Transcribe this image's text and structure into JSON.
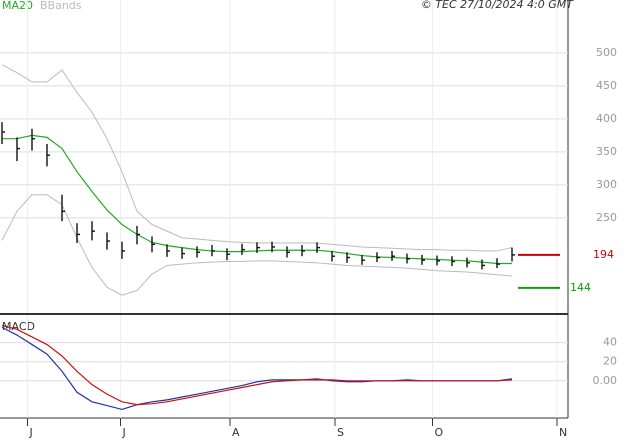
{
  "chart_data": [
    {
      "type": "ohlc",
      "source": "© TEC 27/10/2024 4:0 GMT",
      "high": [
        395,
        372,
        385,
        362,
        285,
        242,
        245,
        228,
        214,
        238,
        222,
        210,
        205,
        207,
        209,
        204,
        211,
        213,
        214,
        207,
        209,
        213,
        200,
        198,
        194,
        198,
        200,
        196,
        194,
        193,
        192,
        190,
        187,
        189,
        205
      ],
      "low": [
        362,
        336,
        352,
        328,
        245,
        212,
        216,
        202,
        188,
        210,
        198,
        191,
        188,
        190,
        192,
        186,
        194,
        197,
        198,
        190,
        192,
        197,
        184,
        182,
        179,
        183,
        185,
        181,
        179,
        178,
        177,
        175,
        172,
        174,
        184
      ],
      "close": [
        380,
        355,
        370,
        345,
        260,
        225,
        230,
        215,
        200,
        225,
        210,
        200,
        196,
        198,
        200,
        195,
        202,
        205,
        206,
        198,
        200,
        205,
        192,
        190,
        186,
        190,
        192,
        188,
        186,
        185,
        184,
        182,
        178,
        180,
        194
      ],
      "series": [
        {
          "name": "MA20",
          "color": "#22aa22",
          "values": [
            370,
            370,
            375,
            372,
            355,
            320,
            290,
            262,
            240,
            225,
            213,
            208,
            205,
            202,
            200,
            199,
            199,
            200,
            201,
            201,
            201,
            201,
            199,
            196,
            193,
            191,
            190,
            189,
            188,
            187,
            186,
            185,
            183,
            181,
            181
          ]
        },
        {
          "name": "BBands",
          "color": "#bbbbbb",
          "upper": [
            482,
            470,
            456,
            456,
            474,
            440,
            410,
            370,
            320,
            260,
            240,
            230,
            220,
            218,
            216,
            214,
            213,
            212,
            212,
            212,
            212,
            212,
            210,
            208,
            206,
            205,
            204,
            203,
            202,
            202,
            201,
            201,
            200,
            200,
            205
          ],
          "lower": [
            216,
            260,
            285,
            285,
            270,
            220,
            175,
            145,
            133,
            140,
            165,
            178,
            180,
            182,
            183,
            184,
            184,
            185,
            185,
            184,
            183,
            182,
            180,
            178,
            177,
            176,
            175,
            174,
            172,
            170,
            169,
            168,
            166,
            164,
            162
          ]
        }
      ],
      "markers": [
        {
          "value": 194,
          "color": "#cc0000"
        },
        {
          "value": 144,
          "color": "#119911"
        }
      ],
      "ylim": [
        106,
        580
      ],
      "yticks": [
        250,
        300,
        350,
        400,
        450,
        500
      ],
      "grid": true
    },
    {
      "type": "line",
      "title": "MACD",
      "series": [
        {
          "color": "#2233aa",
          "values": [
            56,
            48,
            38,
            28,
            10,
            -12,
            -22,
            -26,
            -30,
            -25,
            -22,
            -20,
            -17,
            -14,
            -11,
            -8,
            -5,
            -1,
            1,
            1,
            1,
            2,
            0,
            -1,
            -1,
            0,
            0,
            1,
            0,
            0,
            0,
            0,
            0,
            0,
            2
          ]
        },
        {
          "color": "#cc1111",
          "values": [
            58,
            54,
            46,
            38,
            26,
            10,
            -4,
            -14,
            -22,
            -25,
            -24,
            -22,
            -19,
            -16,
            -13,
            -10,
            -7,
            -4,
            -1,
            0,
            1,
            1,
            1,
            0,
            0,
            0,
            0,
            0,
            0,
            0,
            0,
            0,
            0,
            0,
            1
          ]
        }
      ],
      "ylim": [
        -39,
        69
      ],
      "yticks": [
        40,
        20,
        {
          "value": 0,
          "label": "0.00"
        }
      ],
      "xticks": [
        {
          "value": 1.7,
          "label": "J"
        },
        {
          "value": 7.9,
          "label": "J"
        },
        {
          "value": 15.2,
          "label": "A"
        },
        {
          "value": 22.2,
          "label": "S"
        },
        {
          "value": 28.7,
          "label": "O"
        },
        {
          "value": 37,
          "label": "N"
        }
      ],
      "grid": true
    }
  ]
}
